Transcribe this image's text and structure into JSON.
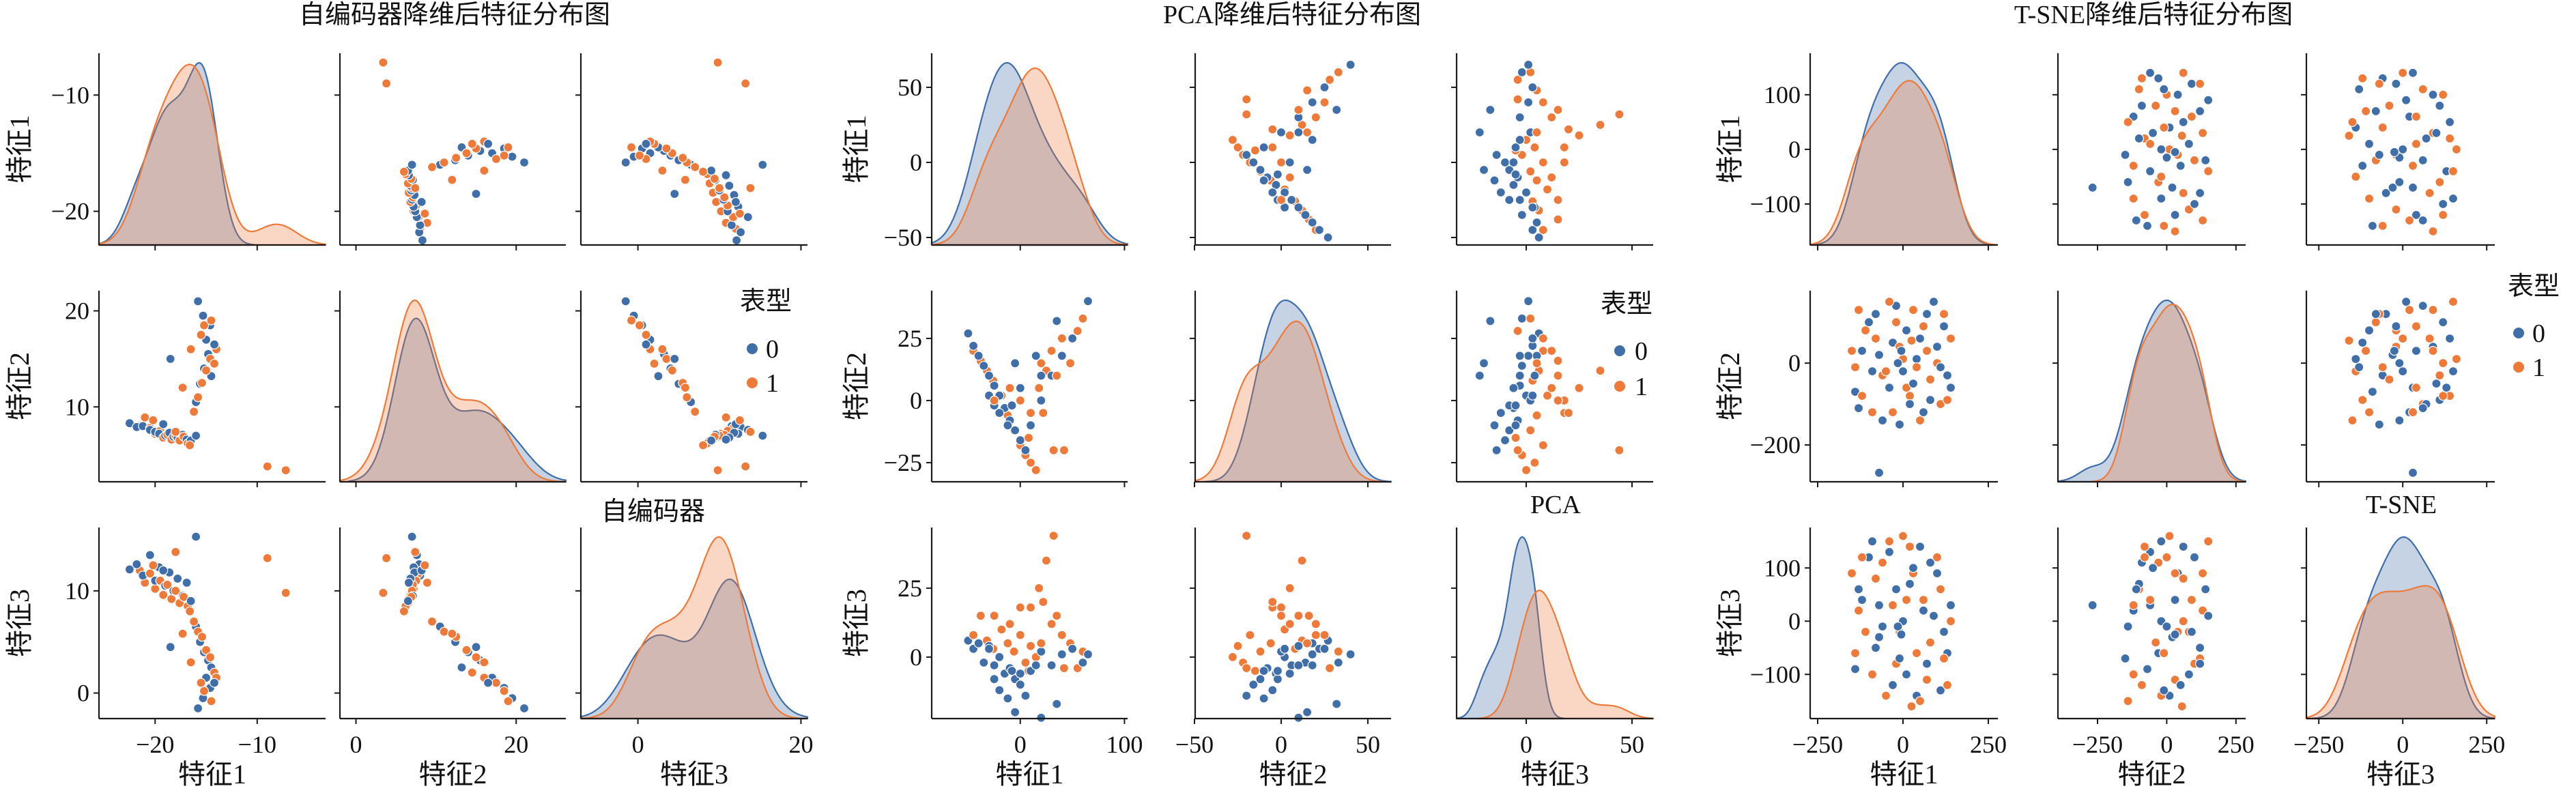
{
  "chart_data": [
    {
      "type": "scatter",
      "diagonal": "kde",
      "title": "自编码器降维后特征分布图",
      "subtitle": "自编码器",
      "legend_title": "表型",
      "legend_placement": "inside-right",
      "grid": false,
      "features": [
        {
          "name": "特征1",
          "xlim": [
            -25.5,
            -3.3
          ],
          "ylim": [
            -22.9,
            -6.4
          ],
          "x_ticks": [
            -20,
            -10
          ],
          "y_ticks": [
            -20,
            -10
          ]
        },
        {
          "name": "特征2",
          "xlim": [
            -2,
            26.2
          ],
          "ylim": [
            2.2,
            22.1
          ],
          "x_ticks": [
            0,
            20
          ],
          "y_ticks": [
            10,
            20
          ]
        },
        {
          "name": "特征3",
          "xlim": [
            -7,
            20.8
          ],
          "ylim": [
            -2.5,
            16.2
          ],
          "x_ticks": [
            0,
            20
          ],
          "y_ticks": [
            0,
            10
          ]
        }
      ],
      "series": [
        {
          "name": "0",
          "color": "#3f6ea8",
          "points": [
            [
              -22.5,
              8.3,
              12.1
            ],
            [
              -21.8,
              7.9,
              12.6
            ],
            [
              -21.2,
              8.0,
              11.5
            ],
            [
              -20.5,
              7.6,
              13.5
            ],
            [
              -20.0,
              7.4,
              11.0
            ],
            [
              -19.6,
              7.2,
              12.3
            ],
            [
              -19.0,
              7.0,
              10.5
            ],
            [
              -18.6,
              7.3,
              11.8
            ],
            [
              -18.2,
              6.9,
              10.0
            ],
            [
              -17.8,
              6.8,
              11.2
            ],
            [
              -17.3,
              7.1,
              9.5
            ],
            [
              -16.9,
              6.6,
              10.8
            ],
            [
              -16.5,
              6.5,
              9.0
            ],
            [
              -19.2,
              8.2,
              12.0
            ],
            [
              -16.0,
              10.5,
              6.5
            ],
            [
              -15.6,
              12.4,
              5.0
            ],
            [
              -15.2,
              14.0,
              4.0
            ],
            [
              -14.8,
              15.5,
              3.2
            ],
            [
              -14.5,
              13.2,
              2.5
            ],
            [
              -15.0,
              17.0,
              1.5
            ],
            [
              -14.6,
              18.5,
              0.5
            ],
            [
              -15.3,
              19.5,
              -0.5
            ],
            [
              -15.8,
              21.0,
              -1.5
            ],
            [
              -14.2,
              16.5,
              1.0
            ],
            [
              -18.5,
              15.0,
              4.5
            ],
            [
              -16.0,
              7.0,
              15.3
            ]
          ]
        },
        {
          "name": "1",
          "color": "#ee7a3a",
          "points": [
            [
              -21.5,
              8.0,
              12.0
            ],
            [
              -21.0,
              8.9,
              10.8
            ],
            [
              -20.5,
              7.8,
              11.7
            ],
            [
              -20.0,
              7.2,
              10.2
            ],
            [
              -19.5,
              7.5,
              11.0
            ],
            [
              -19.2,
              6.8,
              9.6
            ],
            [
              -18.8,
              7.1,
              10.6
            ],
            [
              -18.4,
              6.6,
              9.2
            ],
            [
              -18.0,
              7.0,
              10.0
            ],
            [
              -17.6,
              6.5,
              8.8
            ],
            [
              -17.2,
              6.9,
              9.4
            ],
            [
              -16.8,
              6.2,
              8.5
            ],
            [
              -16.6,
              6.0,
              8.0
            ],
            [
              -18.0,
              7.4,
              13.8
            ],
            [
              -20.2,
              8.6,
              12.5
            ],
            [
              -16.2,
              9.5,
              7.0
            ],
            [
              -15.8,
              11.0,
              6.0
            ],
            [
              -15.4,
              12.5,
              5.5
            ],
            [
              -15.0,
              13.8,
              4.2
            ],
            [
              -14.6,
              15.0,
              3.5
            ],
            [
              -14.2,
              14.5,
              2.0
            ],
            [
              -14.0,
              16.0,
              1.5
            ],
            [
              -15.5,
              17.5,
              1.0
            ],
            [
              -15.2,
              18.5,
              0.2
            ],
            [
              -14.5,
              19.0,
              -0.8
            ],
            [
              -16.5,
              16.0,
              3.0
            ],
            [
              -17.3,
              12.0,
              5.8
            ],
            [
              -9.0,
              3.8,
              13.2
            ],
            [
              -7.2,
              3.4,
              9.8
            ]
          ]
        }
      ]
    },
    {
      "type": "scatter",
      "diagonal": "kde",
      "title": "PCA降维后特征分布图",
      "subtitle": "PCA",
      "legend_title": "表型",
      "legend_placement": "inside-right",
      "grid": false,
      "features": [
        {
          "name": "特征1",
          "xlim": [
            -85,
            103
          ],
          "ylim": [
            -55,
            72.7
          ],
          "x_ticks": [
            0,
            100
          ],
          "y_ticks": [
            -50,
            0,
            50
          ]
        },
        {
          "name": "特征2",
          "xlim": [
            -49.6,
            63.4
          ],
          "ylim": [
            -32.7,
            44.2
          ],
          "x_ticks": [
            -50,
            0,
            50
          ],
          "y_ticks": [
            -25,
            0,
            25
          ]
        },
        {
          "name": "特征3",
          "xlim": [
            -32.9,
            60
          ],
          "ylim": [
            -22.3,
            47
          ],
          "x_ticks": [
            0,
            50
          ],
          "y_ticks": [
            0,
            25
          ]
        }
      ],
      "series": [
        {
          "name": "0",
          "color": "#3f6ea8",
          "points": [
            [
              -50,
              27,
              6
            ],
            [
              -45,
              22,
              3
            ],
            [
              -40,
              18,
              5
            ],
            [
              -35,
              14,
              -2
            ],
            [
              -30,
              10,
              4
            ],
            [
              -25,
              6,
              -3
            ],
            [
              -20,
              2,
              0
            ],
            [
              -15,
              -3,
              -6
            ],
            [
              -10,
              -8,
              -4
            ],
            [
              -5,
              -12,
              -8
            ],
            [
              0,
              -16,
              -10
            ],
            [
              5,
              -20,
              -14
            ],
            [
              -20,
              -5,
              -12
            ],
            [
              -12,
              -10,
              -15
            ],
            [
              10,
              -10,
              -5
            ],
            [
              20,
              0,
              2
            ],
            [
              30,
              10,
              -3
            ],
            [
              40,
              18,
              1
            ],
            [
              50,
              25,
              3
            ],
            [
              60,
              33,
              -2
            ],
            [
              65,
              40,
              1
            ],
            [
              35,
              32,
              -17
            ],
            [
              15,
              18,
              -3
            ],
            [
              -25,
              -2,
              -8
            ],
            [
              -8,
              -2,
              -5
            ],
            [
              0,
              5,
              -6
            ],
            [
              -30,
              2,
              3
            ],
            [
              -5,
              15,
              -20
            ],
            [
              20,
              10,
              -22
            ]
          ]
        },
        {
          "name": "1",
          "color": "#ee7a3a",
          "points": [
            [
              -45,
              20,
              8
            ],
            [
              -38,
              16,
              15
            ],
            [
              -32,
              12,
              6
            ],
            [
              -26,
              8,
              3
            ],
            [
              -18,
              2,
              10
            ],
            [
              -12,
              -6,
              5
            ],
            [
              -6,
              -12,
              2
            ],
            [
              0,
              -18,
              8
            ],
            [
              5,
              -22,
              -2
            ],
            [
              10,
              -25,
              4
            ],
            [
              15,
              -28,
              0
            ],
            [
              8,
              -15,
              -5
            ],
            [
              10,
              -5,
              18
            ],
            [
              18,
              5,
              25
            ],
            [
              25,
              12,
              35
            ],
            [
              30,
              20,
              12
            ],
            [
              40,
              25,
              8
            ],
            [
              48,
              15,
              5
            ],
            [
              55,
              28,
              -4
            ],
            [
              60,
              33,
              2
            ],
            [
              35,
              10,
              15
            ],
            [
              22,
              -5,
              20
            ],
            [
              32,
              -20,
              44
            ],
            [
              0,
              0,
              18
            ],
            [
              -10,
              5,
              12
            ],
            [
              42,
              -20,
              -4
            ],
            [
              20,
              15,
              5
            ],
            [
              -25,
              0,
              15
            ]
          ]
        }
      ]
    },
    {
      "type": "scatter",
      "diagonal": "kde",
      "title": "T-SNE降维后特征分布图",
      "subtitle": "T-SNE",
      "legend_title": "表型",
      "legend_placement": "outside-right",
      "grid": false,
      "features": [
        {
          "name": "特征1",
          "xlim": [
            -272,
            278
          ],
          "ylim": [
            -175,
            176
          ],
          "x_ticks": [
            -250,
            0,
            250
          ],
          "y_ticks": [
            -100,
            0,
            100
          ]
        },
        {
          "name": "特征2",
          "xlim": [
            -393,
            285
          ],
          "ylim": [
            -290,
            177
          ],
          "x_ticks": [
            -250,
            0,
            250
          ],
          "y_ticks": [
            -200,
            0
          ]
        },
        {
          "name": "特征3",
          "xlim": [
            -287,
            274
          ],
          "ylim": [
            -183,
            176
          ],
          "x_ticks": [
            -250,
            0,
            250
          ],
          "y_ticks": [
            -100,
            0,
            100
          ]
        }
      ],
      "series": [
        {
          "name": "0",
          "color": "#3f6ea8",
          "points": [
            [
              -120,
              30,
              40
            ],
            [
              -80,
              120,
              -50
            ],
            [
              -40,
              -60,
              130
            ],
            [
              10,
              80,
              -100
            ],
            [
              60,
              -120,
              20
            ],
            [
              100,
              40,
              90
            ],
            [
              130,
              -30,
              -60
            ],
            [
              -140,
              -70,
              -90
            ],
            [
              -20,
              140,
              60
            ],
            [
              40,
              10,
              -140
            ],
            [
              80,
              -90,
              110
            ],
            [
              -100,
              100,
              120
            ],
            [
              120,
              90,
              -20
            ],
            [
              -60,
              -140,
              -10
            ],
            [
              0,
              -20,
              0
            ],
            [
              -30,
              50,
              -120
            ],
            [
              20,
              -100,
              70
            ],
            [
              140,
              -60,
              30
            ],
            [
              -90,
              -20,
              150
            ],
            [
              70,
              120,
              -80
            ],
            [
              -130,
              -110,
              60
            ],
            [
              50,
              60,
              140
            ],
            [
              -10,
              -150,
              -70
            ],
            [
              110,
              -10,
              -130
            ],
            [
              -70,
              20,
              -30
            ],
            [
              30,
              -50,
              100
            ],
            [
              -70,
              -268,
              30
            ],
            [
              90,
              150,
              10
            ],
            [
              -15,
              0,
              -10
            ],
            [
              -5,
              30,
              -25
            ]
          ]
        },
        {
          "name": "1",
          "color": "#ee7a3a",
          "points": [
            [
              -110,
              80,
              -20
            ],
            [
              -60,
              -30,
              110
            ],
            [
              -20,
              100,
              -80
            ],
            [
              20,
              -80,
              140
            ],
            [
              70,
              30,
              -110
            ],
            [
              110,
              -100,
              60
            ],
            [
              140,
              60,
              0
            ],
            [
              -140,
              -10,
              -60
            ],
            [
              -30,
              -120,
              30
            ],
            [
              30,
              130,
              90
            ],
            [
              80,
              -40,
              -40
            ],
            [
              -80,
              60,
              80
            ],
            [
              0,
              10,
              160
            ],
            [
              50,
              -140,
              -150
            ],
            [
              -120,
              -80,
              120
            ],
            [
              120,
              120,
              -70
            ],
            [
              -50,
              -20,
              -140
            ],
            [
              10,
              -60,
              40
            ],
            [
              -90,
              -120,
              -100
            ],
            [
              60,
              90,
              40
            ],
            [
              100,
              0,
              120
            ],
            [
              -10,
              40,
              -20
            ],
            [
              40,
              -10,
              -60
            ],
            [
              -130,
              130,
              20
            ],
            [
              130,
              -90,
              -120
            ],
            [
              -40,
              150,
              150
            ],
            [
              25,
              55,
              -160
            ],
            [
              -150,
              30,
              90
            ]
          ]
        }
      ]
    }
  ]
}
